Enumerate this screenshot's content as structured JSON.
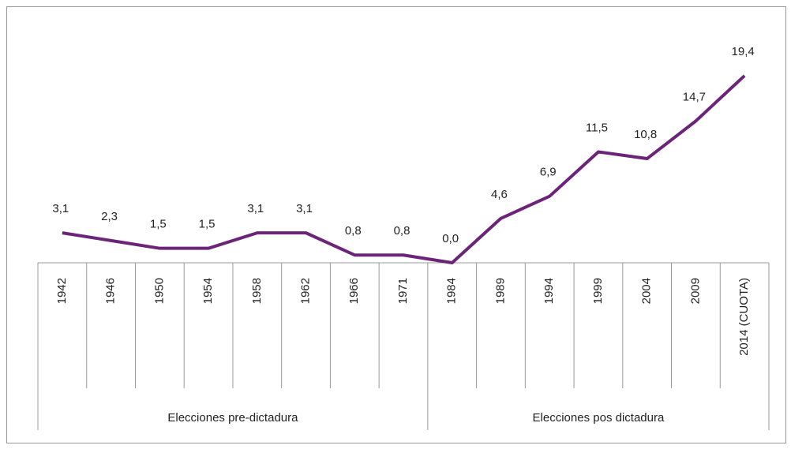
{
  "chart_data": {
    "type": "line",
    "categories": [
      "1942",
      "1946",
      "1950",
      "1954",
      "1958",
      "1962",
      "1966",
      "1971",
      "1984",
      "1989",
      "1994",
      "1999",
      "2004",
      "2009",
      "2014 (CUOTA)"
    ],
    "values": [
      3.1,
      2.3,
      1.5,
      1.5,
      3.1,
      3.1,
      0.8,
      0.8,
      0.0,
      4.6,
      6.9,
      11.5,
      10.8,
      14.7,
      19.4
    ],
    "value_labels": [
      "3,1",
      "2,3",
      "1,5",
      "1,5",
      "3,1",
      "3,1",
      "0,8",
      "0,8",
      "0,0",
      "4,6",
      "6,9",
      "11,5",
      "10,8",
      "14,7",
      "19,4"
    ],
    "color": "#6b2478",
    "ylim": [
      0,
      20
    ],
    "groups": [
      {
        "name": "Elecciones pre-dictadura",
        "count": 8
      },
      {
        "name": "Elecciones pos dictadura",
        "count": 7
      }
    ]
  }
}
